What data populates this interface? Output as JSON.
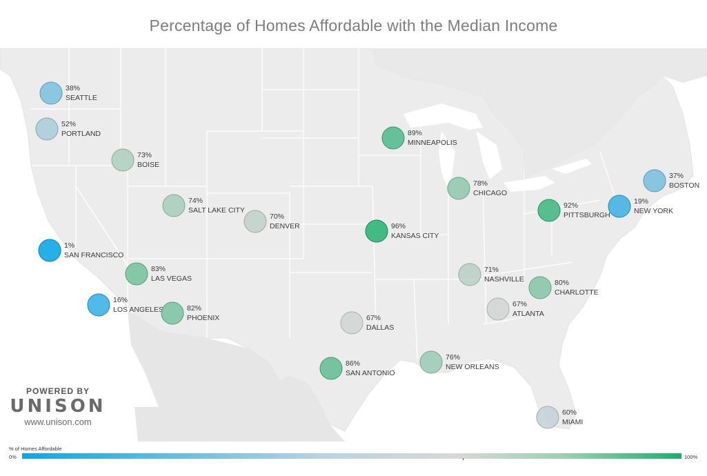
{
  "title": "Percentage of Homes Affordable with the Median Income",
  "branding": {
    "powered_by": "POWERED BY",
    "name": "UNISON",
    "url": "www.unison.com"
  },
  "legend": {
    "title": "% of Homes Affordable",
    "min_label": "0%",
    "max_label": "100%",
    "color_low": "#0aa6e8",
    "color_mid": "#d8d8d8",
    "color_high": "#1ab06a"
  },
  "colors": {
    "land": "#ececec",
    "water": "#ffffff",
    "borders": "#ffffff"
  },
  "cities": [
    {
      "name": "SEATTLE",
      "pct": "38%",
      "value": 38
    },
    {
      "name": "PORTLAND",
      "pct": "52%",
      "value": 52
    },
    {
      "name": "BOISE",
      "pct": "73%",
      "value": 73
    },
    {
      "name": "SALT LAKE CITY",
      "pct": "74%",
      "value": 74
    },
    {
      "name": "DENVER",
      "pct": "70%",
      "value": 70
    },
    {
      "name": "SAN FRANCISCO",
      "pct": "1%",
      "value": 1
    },
    {
      "name": "LAS VEGAS",
      "pct": "83%",
      "value": 83
    },
    {
      "name": "LOS ANGELES",
      "pct": "16%",
      "value": 16
    },
    {
      "name": "PHOENIX",
      "pct": "82%",
      "value": 82
    },
    {
      "name": "MINNEAPOLIS",
      "pct": "89%",
      "value": 89
    },
    {
      "name": "KANSAS CITY",
      "pct": "96%",
      "value": 96
    },
    {
      "name": "DALLAS",
      "pct": "67%",
      "value": 67
    },
    {
      "name": "SAN ANTONIO",
      "pct": "86%",
      "value": 86
    },
    {
      "name": "CHICAGO",
      "pct": "78%",
      "value": 78
    },
    {
      "name": "NASHVILLE",
      "pct": "71%",
      "value": 71
    },
    {
      "name": "NEW ORLEANS",
      "pct": "76%",
      "value": 76
    },
    {
      "name": "ATLANTA",
      "pct": "67%",
      "value": 67
    },
    {
      "name": "CHARLOTTE",
      "pct": "80%",
      "value": 80
    },
    {
      "name": "PITTSBURGH",
      "pct": "92%",
      "value": 92
    },
    {
      "name": "NEW YORK",
      "pct": "19%",
      "value": 19
    },
    {
      "name": "BOSTON",
      "pct": "37%",
      "value": 37
    },
    {
      "name": "MIAMI",
      "pct": "60%",
      "value": 60
    }
  ]
}
